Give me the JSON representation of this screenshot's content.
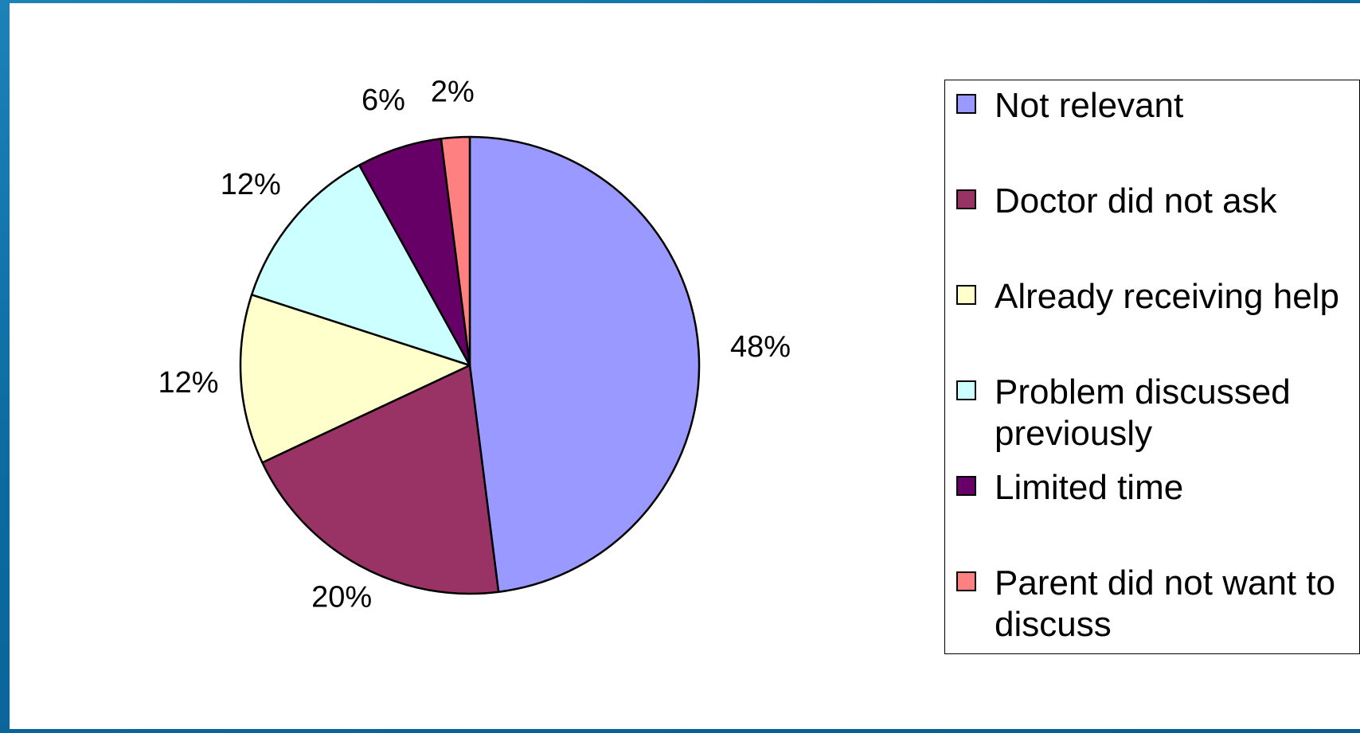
{
  "chart_data": {
    "type": "pie",
    "title": "",
    "categories": [
      "Not relevant",
      "Doctor did not ask",
      "Already receiving help",
      "Problem discussed previously",
      "Limited time",
      "Parent did not want to discuss"
    ],
    "values": [
      48,
      20,
      12,
      12,
      6,
      2
    ],
    "data_labels": [
      "48%",
      "20%",
      "12%",
      "12%",
      "6%",
      "2%"
    ],
    "colors": [
      "#9999ff",
      "#993366",
      "#ffffcc",
      "#ccffff",
      "#660066",
      "#ff8080"
    ],
    "start_angle": "12 o'clock",
    "direction": "clockwise",
    "legend_position": "right"
  },
  "colors": {
    "background": "#0b6aa0",
    "panel": "#ffffff",
    "outline": "#000000"
  }
}
